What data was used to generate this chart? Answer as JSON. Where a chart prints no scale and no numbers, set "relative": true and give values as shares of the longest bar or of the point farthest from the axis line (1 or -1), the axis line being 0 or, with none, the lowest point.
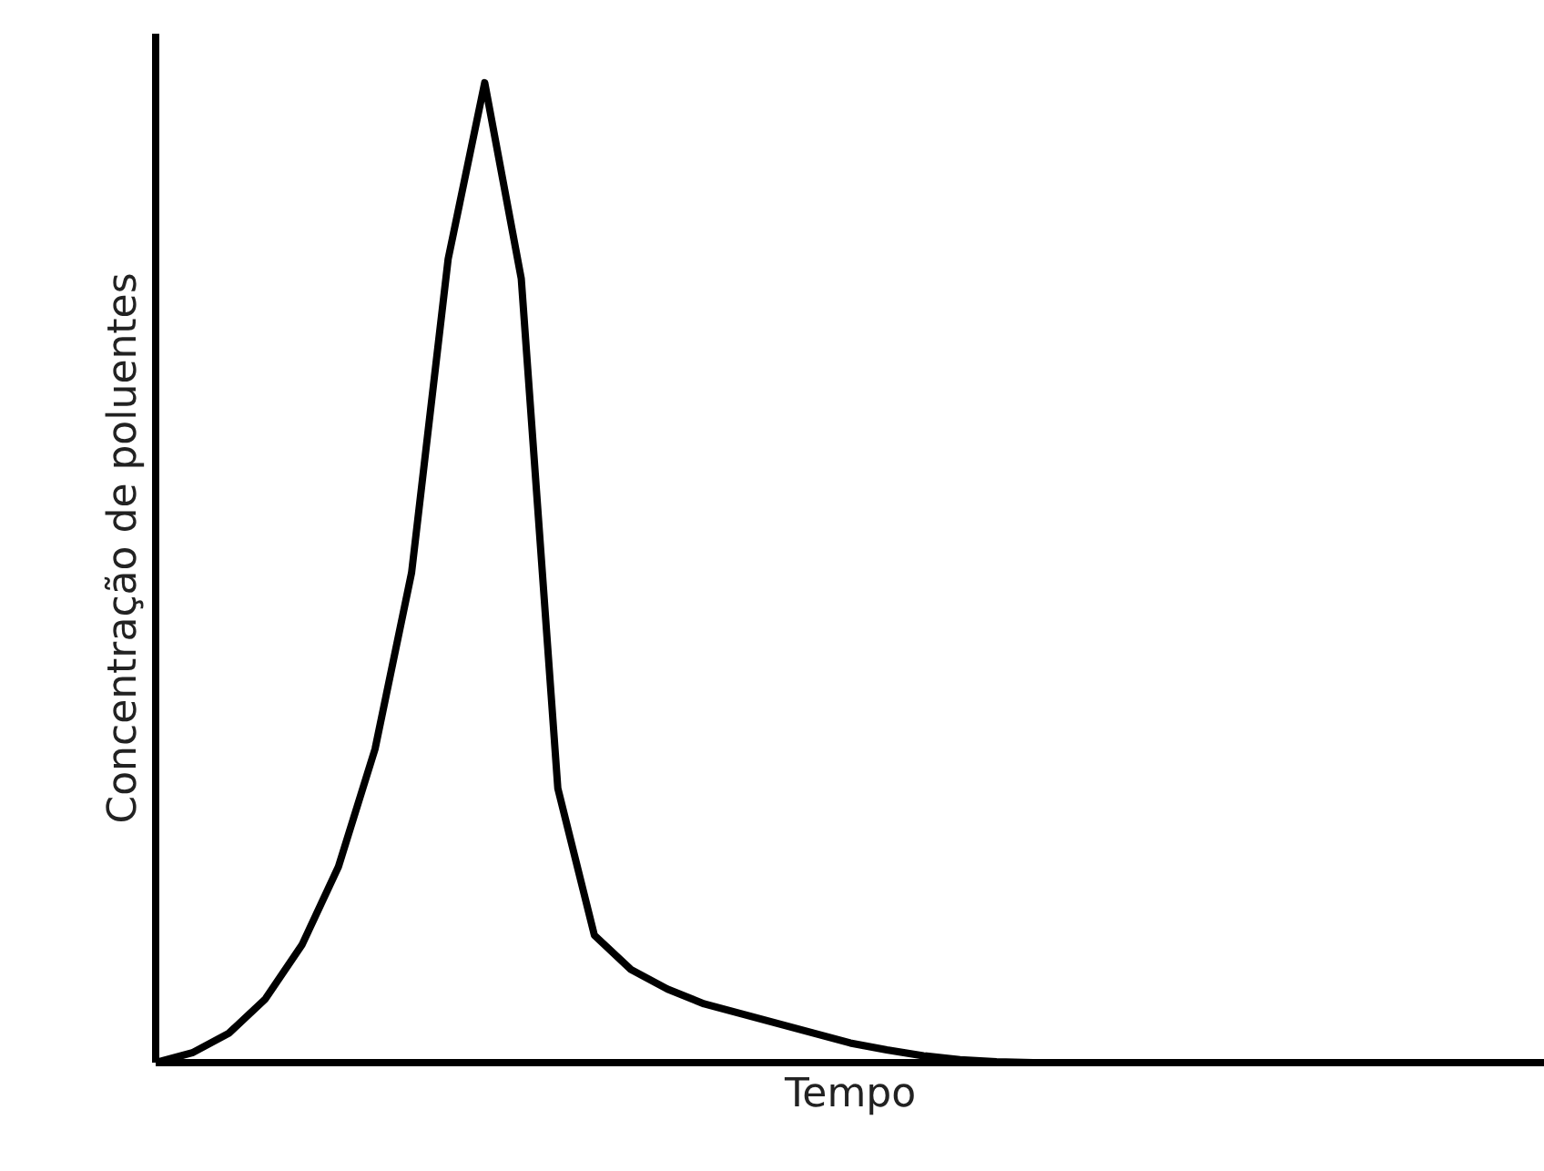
{
  "chart_data": {
    "type": "line",
    "relative": true,
    "xlabel": "Tempo",
    "ylabel": "Concentração de poluentes",
    "categories": [
      null,
      null,
      null,
      null,
      null,
      null,
      null,
      null,
      null,
      null,
      null,
      null,
      null,
      null,
      null,
      null,
      null,
      null,
      null,
      null,
      null,
      null,
      null,
      null,
      null,
      null,
      null,
      null,
      null,
      null,
      null,
      null,
      null,
      null,
      null,
      null,
      null,
      null,
      null
    ],
    "series": [
      {
        "color": "#000000",
        "values": [
          0,
          0.01,
          0.03,
          0.065,
          0.12,
          0.2,
          0.32,
          0.5,
          0.82,
          1,
          0.8,
          0.28,
          0.13,
          0.095,
          0.075,
          0.06,
          0.05,
          0.04,
          0.03,
          0.02,
          0.013,
          0.007,
          0.003,
          0.001,
          0,
          0,
          0,
          0,
          0,
          0,
          0,
          0,
          0,
          0,
          0,
          0,
          0,
          0,
          0
        ]
      }
    ]
  }
}
